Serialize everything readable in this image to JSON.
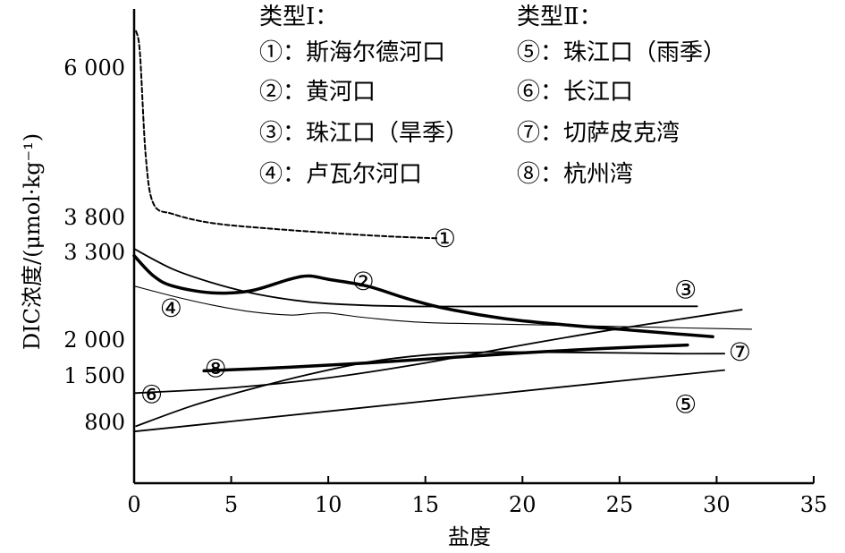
{
  "chart_data": {
    "type": "line",
    "xlabel": "盐度",
    "ylabel": "DIC浓度/(μmol·kg⁻¹)",
    "xlim": [
      0,
      35
    ],
    "x_ticks": [
      0,
      5,
      10,
      15,
      20,
      25,
      30,
      35
    ],
    "x_tick_labels": [
      "0",
      "5",
      "10",
      "15",
      "20",
      "25",
      "30",
      "35"
    ],
    "y_ticks": [
      800,
      1500,
      2000,
      3300,
      3800,
      6000
    ],
    "y_tick_labels": [
      "800",
      "1 500",
      "2 000",
      "3 300",
      "3 800",
      "6 000"
    ],
    "y_axis_note": "non-linear (broken) y-axis scale",
    "grid": false,
    "legend": {
      "position": "top-right",
      "groups": [
        {
          "title": "类型Ⅰ：",
          "entries": [
            "①：斯海尔德河口",
            "②：黄河口",
            "③：珠江口（旱季）",
            "④：卢瓦尔河口"
          ]
        },
        {
          "title": "类型Ⅱ：",
          "entries": [
            "⑤：珠江口（雨季）",
            "⑥：长江口",
            "⑦：切萨皮克湾",
            "⑧：杭州湾"
          ]
        }
      ]
    },
    "series": [
      {
        "name": "①",
        "color": "#000000",
        "style": "dashed",
        "x": [
          0.1,
          0.3,
          0.6,
          1,
          2,
          4,
          7,
          10,
          13,
          15.7
        ],
        "y": [
          6500,
          6200,
          4700,
          4000,
          3850,
          3720,
          3640,
          3580,
          3530,
          3500
        ]
      },
      {
        "name": "②",
        "color": "#000000",
        "style": "thick",
        "x": [
          0,
          1,
          2,
          4,
          6,
          8,
          9,
          10,
          12,
          14,
          16,
          19,
          22,
          25,
          28,
          29.8
        ],
        "y": [
          3250,
          2950,
          2800,
          2700,
          2730,
          2900,
          2950,
          2900,
          2800,
          2620,
          2470,
          2320,
          2230,
          2160,
          2090,
          2050
        ]
      },
      {
        "name": "③",
        "color": "#000000",
        "style": "medium",
        "x": [
          0,
          2,
          4,
          6,
          8,
          10,
          14,
          20,
          25,
          28,
          29
        ],
        "y": [
          3350,
          3050,
          2850,
          2700,
          2600,
          2540,
          2500,
          2500,
          2500,
          2500,
          2500
        ]
      },
      {
        "name": "④",
        "color": "#000000",
        "style": "thin",
        "x": [
          0,
          2,
          4,
          6,
          8,
          9,
          10,
          12,
          15,
          20,
          25,
          30,
          31.8
        ],
        "y": [
          2800,
          2650,
          2520,
          2420,
          2370,
          2390,
          2400,
          2330,
          2260,
          2230,
          2200,
          2170,
          2160
        ]
      },
      {
        "name": "⑤",
        "color": "#000000",
        "style": "medium",
        "x": [
          0,
          30.4
        ],
        "y": [
          680,
          1580
        ]
      },
      {
        "name": "⑥",
        "color": "#000000",
        "style": "medium",
        "x": [
          0,
          5,
          10,
          15,
          20,
          25,
          31.3
        ],
        "y": [
          1240,
          1320,
          1470,
          1680,
          1930,
          2170,
          2450
        ]
      },
      {
        "name": "⑦",
        "color": "#000000",
        "style": "medium",
        "x": [
          0.1,
          3,
          6,
          9,
          12,
          15,
          18,
          21,
          25,
          28,
          30.4
        ],
        "y": [
          750,
          1050,
          1300,
          1520,
          1690,
          1790,
          1830,
          1830,
          1820,
          1810,
          1810
        ]
      },
      {
        "name": "⑧",
        "color": "#000000",
        "style": "thick",
        "x": [
          3.6,
          8,
          12,
          16,
          20,
          24,
          28.5
        ],
        "y": [
          1570,
          1620,
          1680,
          1750,
          1820,
          1880,
          1930
        ]
      }
    ],
    "point_labels": [
      {
        "text": "①",
        "x": 16.0,
        "y": 3500
      },
      {
        "text": "②",
        "x": 11.8,
        "y": 2870
      },
      {
        "text": "③",
        "x": 28.4,
        "y": 2740
      },
      {
        "text": "④",
        "x": 1.9,
        "y": 2470
      },
      {
        "text": "⑤",
        "x": 28.4,
        "y": 1070
      },
      {
        "text": "⑥",
        "x": 0.9,
        "y": 1220
      },
      {
        "text": "⑦",
        "x": 31.2,
        "y": 1830
      },
      {
        "text": "⑧",
        "x": 4.2,
        "y": 1600
      }
    ]
  }
}
